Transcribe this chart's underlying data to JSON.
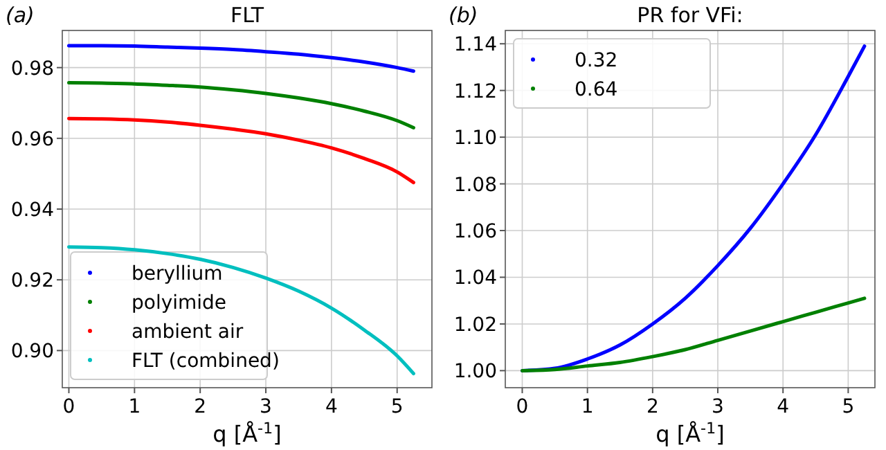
{
  "chart_data": [
    {
      "type": "line",
      "title": "FLT",
      "annotations": [
        "(a)"
      ],
      "xlabel": "q [Å$^{-1}$]",
      "x": [
        0,
        0.5,
        1,
        1.5,
        2,
        2.5,
        3,
        3.5,
        4,
        4.5,
        5,
        5.25
      ],
      "xlim": [
        -0.1,
        5.53
      ],
      "xticks": [
        0,
        1,
        2,
        3,
        4,
        5
      ],
      "ylim": [
        0.8895,
        0.9905
      ],
      "yticks": [
        {
          "value": 0.9,
          "label": "0.90"
        },
        {
          "value": 0.92,
          "label": "0.92"
        },
        {
          "value": 0.94,
          "label": "0.94"
        },
        {
          "value": 0.96,
          "label": "0.96"
        },
        {
          "value": 0.98,
          "label": "0.98"
        }
      ],
      "grid": true,
      "legend": "bottom left",
      "series": [
        {
          "name": "beryllium",
          "color": "#0000ff",
          "values": [
            0.9862,
            0.9862,
            0.9861,
            0.9858,
            0.9855,
            0.9851,
            0.9845,
            0.9838,
            0.9828,
            0.9816,
            0.98,
            0.979
          ]
        },
        {
          "name": "polyimide",
          "color": "#008000",
          "values": [
            0.9757,
            0.9756,
            0.9754,
            0.975,
            0.9745,
            0.9737,
            0.9727,
            0.9714,
            0.9698,
            0.9677,
            0.965,
            0.963
          ]
        },
        {
          "name": "ambient air",
          "color": "#ff0000",
          "values": [
            0.9656,
            0.9655,
            0.9652,
            0.9646,
            0.9637,
            0.9626,
            0.9613,
            0.9595,
            0.9573,
            0.9543,
            0.9505,
            0.9475
          ]
        },
        {
          "name": "FLT (combined)",
          "color": "#00bfbf",
          "values": [
            0.9293,
            0.9291,
            0.9285,
            0.9274,
            0.9258,
            0.9235,
            0.9205,
            0.9168,
            0.912,
            0.9058,
            0.8985,
            0.8935
          ]
        }
      ]
    },
    {
      "type": "line",
      "title": "PR for VFi:",
      "annotations": [
        "(b)"
      ],
      "xlabel": "q [Å$^{-1}$]",
      "x": [
        0,
        0.5,
        1,
        1.5,
        2,
        2.5,
        3,
        3.5,
        4,
        4.5,
        5,
        5.25
      ],
      "xlim": [
        -0.26,
        5.41
      ],
      "xticks": [
        0,
        1,
        2,
        3,
        4,
        5
      ],
      "ylim": [
        0.9927,
        1.1457
      ],
      "yticks": [
        {
          "value": 1,
          "label": "1.00"
        },
        {
          "value": 1.02,
          "label": "1.02"
        },
        {
          "value": 1.04,
          "label": "1.04"
        },
        {
          "value": 1.06,
          "label": "1.06"
        },
        {
          "value": 1.08,
          "label": "1.08"
        },
        {
          "value": 1.1,
          "label": "1.10"
        },
        {
          "value": 1.12,
          "label": "1.12"
        },
        {
          "value": 1.14,
          "label": "1.14"
        }
      ],
      "grid": true,
      "legend": "top left",
      "series": [
        {
          "name": "0.32",
          "color": "#0000ff",
          "values": [
            1,
            1.001,
            1.005,
            1.011,
            1.02,
            1.031,
            1.045,
            1.061,
            1.08,
            1.101,
            1.126,
            1.139
          ]
        },
        {
          "name": "0.64",
          "color": "#008000",
          "values": [
            1,
            1.0005,
            1.002,
            1.0035,
            1.006,
            1.009,
            1.013,
            1.017,
            1.021,
            1.025,
            1.029,
            1.031
          ]
        }
      ]
    }
  ]
}
